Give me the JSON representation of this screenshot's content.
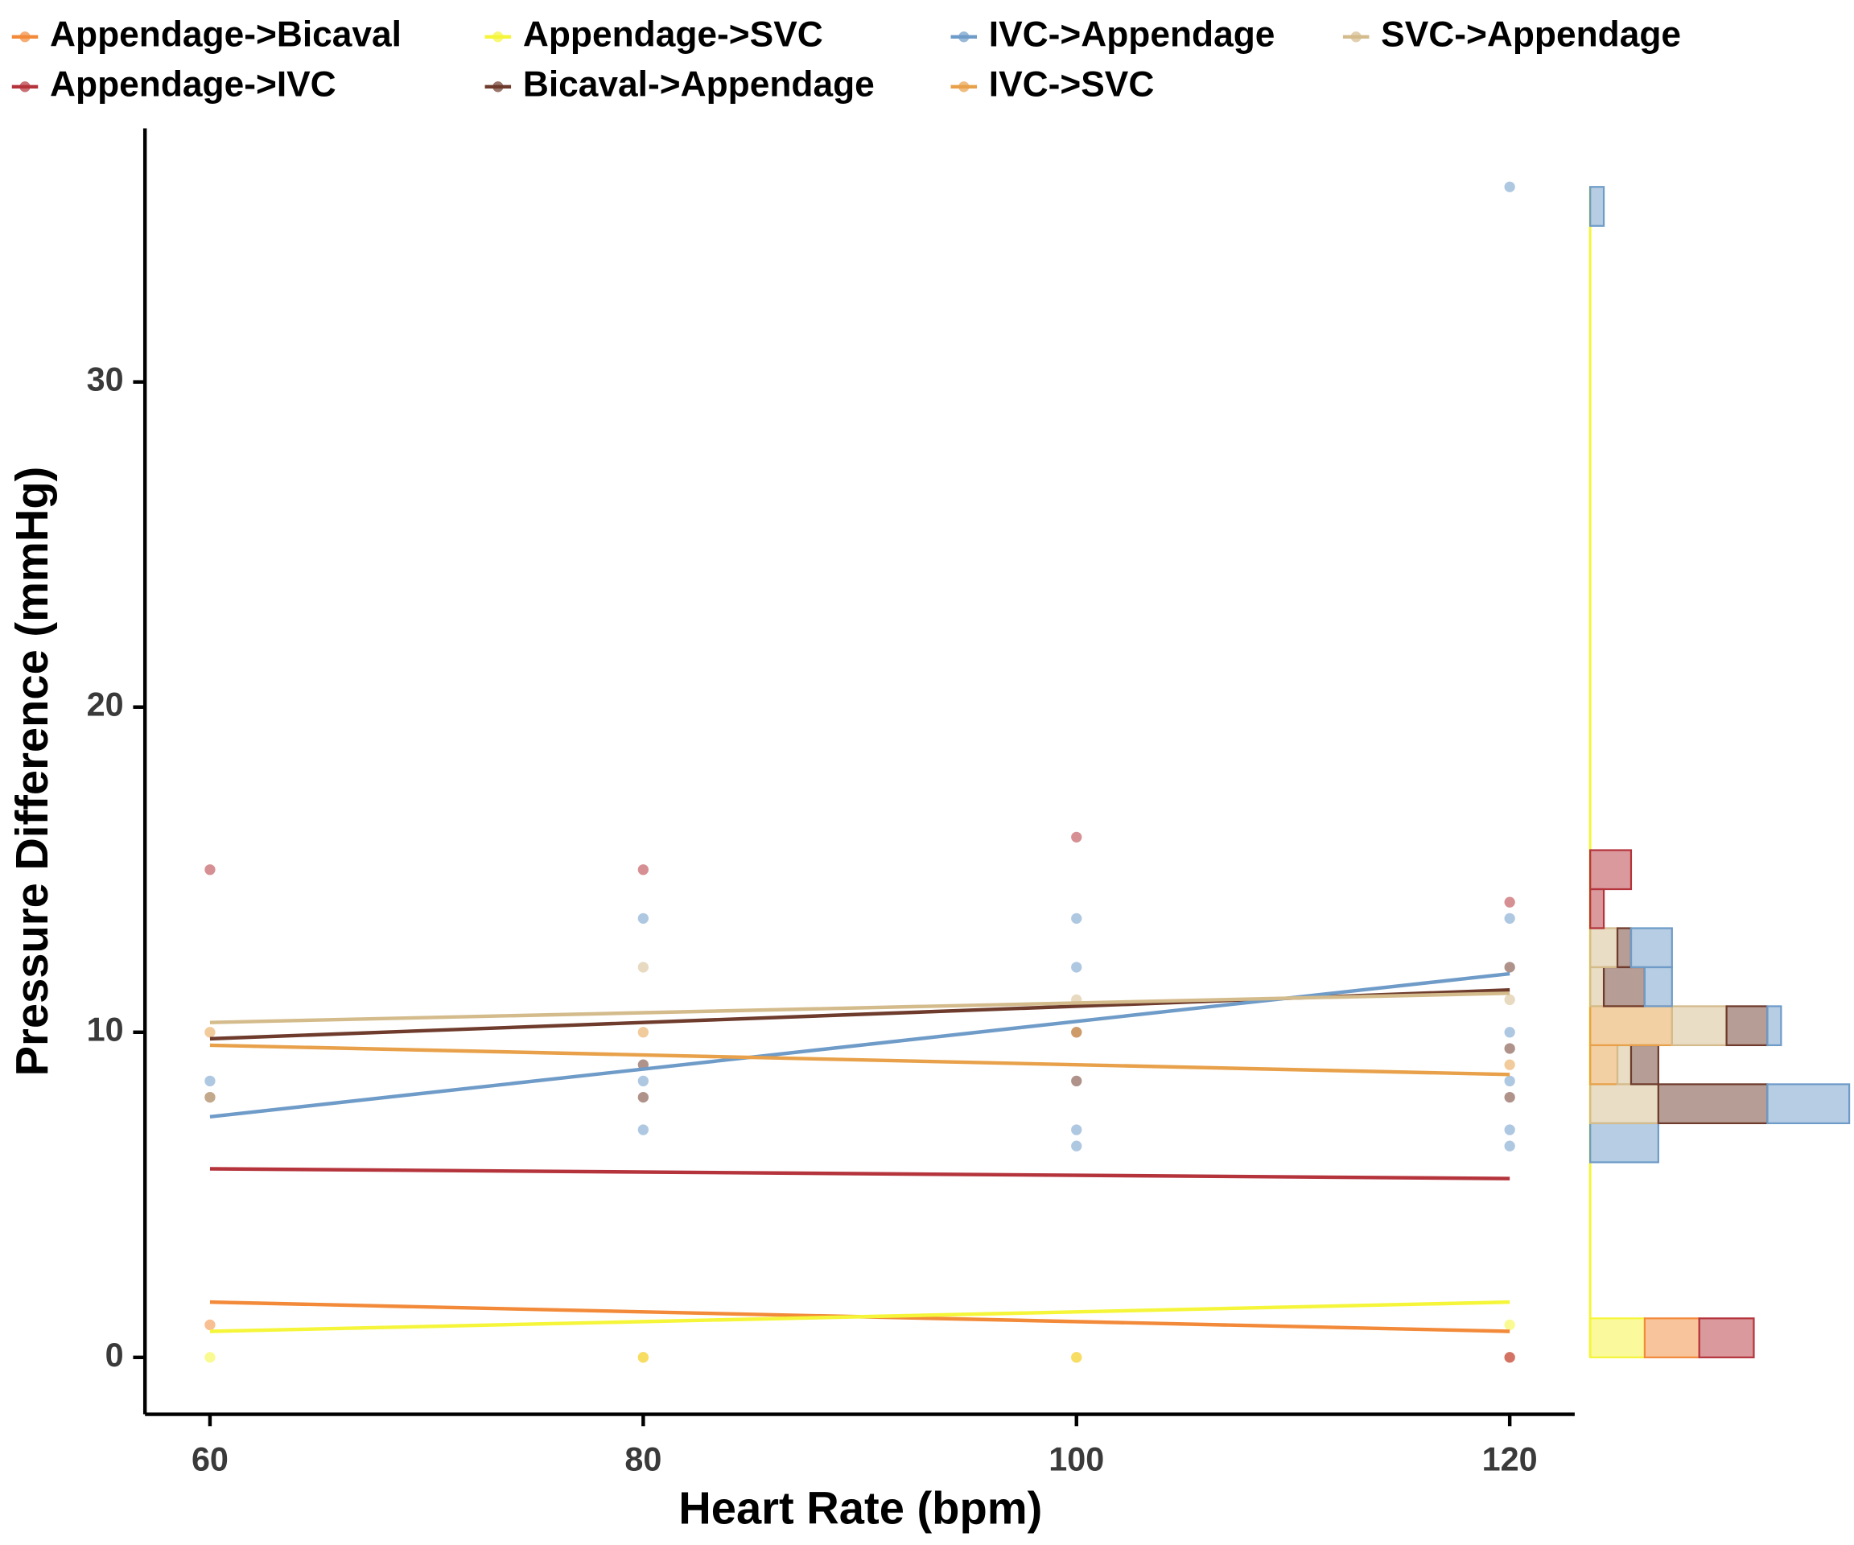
{
  "chart_data": {
    "type": "scatter",
    "x_label": "Heart Rate (bpm)",
    "y_label": "Pressure Difference (mmHg)",
    "xlim": [
      57,
      123
    ],
    "ylim": [
      -1.75,
      37.8
    ],
    "xticks": [
      60,
      80,
      100,
      120
    ],
    "yticks": [
      0,
      10,
      20,
      30
    ],
    "fit_x": [
      60,
      120
    ],
    "series": [
      {
        "name": "Appendage->Bicaval",
        "color": "#f28a3a",
        "x": [
          60,
          80,
          100,
          120
        ],
        "values": [
          1,
          0,
          0,
          0
        ],
        "fit": [
          1.7,
          0.8
        ]
      },
      {
        "name": "Appendage->IVC",
        "color": "#b5343c",
        "x": [
          60,
          80,
          100,
          120,
          120
        ],
        "values": [
          15,
          15,
          16,
          14,
          0
        ],
        "fit": [
          5.8,
          5.5
        ]
      },
      {
        "name": "Appendage->SVC",
        "color": "#f5f53a",
        "x": [
          60,
          80,
          100,
          120
        ],
        "values": [
          0,
          0,
          0,
          1
        ],
        "fit": [
          0.8,
          1.7
        ]
      },
      {
        "name": "Bicaval->Appendage",
        "color": "#6e3b2c",
        "x": [
          60,
          80,
          80,
          100,
          100,
          120,
          120,
          120
        ],
        "values": [
          8,
          8,
          9,
          8.5,
          10,
          12,
          9.5,
          8
        ],
        "fit": [
          9.8,
          11.3
        ]
      },
      {
        "name": "IVC->Appendage",
        "color": "#6e9bc8",
        "x": [
          60,
          80,
          80,
          80,
          100,
          100,
          100,
          100,
          120,
          120,
          120,
          120,
          120,
          120
        ],
        "values": [
          8.5,
          13.5,
          8.5,
          7,
          13.5,
          12,
          7,
          6.5,
          36,
          13.5,
          8.5,
          7,
          6.5,
          10
        ],
        "fit": [
          7.4,
          11.8
        ]
      },
      {
        "name": "IVC->SVC",
        "color": "#e8a14a",
        "x": [
          60,
          80,
          100,
          120
        ],
        "values": [
          10,
          10,
          10,
          9
        ],
        "fit": [
          9.6,
          8.7
        ]
      },
      {
        "name": "SVC->Appendage",
        "color": "#d4bb8c",
        "x": [
          60,
          80,
          100,
          120
        ],
        "values": [
          8,
          12,
          11,
          11
        ],
        "fit": [
          10.3,
          11.2
        ]
      }
    ],
    "histogram": {
      "bins": [
        0,
        1.2,
        2.4,
        3.6,
        4.8,
        6,
        7.2,
        8.4,
        9.6,
        10.8,
        12,
        13.2,
        14.4,
        15.6,
        16.8,
        18,
        19.2,
        20.4,
        21.6,
        22.8,
        24,
        25.2,
        26.4,
        27.6,
        28.8,
        30,
        31.2,
        32.4,
        33.6,
        34.8,
        36
      ],
      "counts": [
        [
          4,
          0,
          0,
          0,
          0,
          0,
          0,
          0,
          0,
          0,
          0,
          0,
          0,
          0,
          0,
          0,
          0,
          0,
          0,
          0,
          0,
          0,
          0,
          0,
          0,
          0,
          0,
          0,
          0,
          0
        ],
        [
          4,
          0,
          0,
          0,
          0,
          0,
          0,
          0,
          0,
          0,
          0,
          1,
          3,
          0,
          0,
          0,
          0,
          0,
          0,
          0,
          0,
          0,
          0,
          0,
          0,
          0,
          0,
          0,
          0,
          0
        ],
        [
          4,
          0,
          0,
          0,
          0,
          0,
          0,
          0,
          0,
          0,
          0,
          0,
          0,
          0,
          0,
          0,
          0,
          0,
          0,
          0,
          0,
          0,
          0,
          0,
          0,
          0,
          0,
          0,
          0,
          0
        ],
        [
          0,
          0,
          0,
          0,
          0,
          0,
          8,
          2,
          3,
          3,
          1,
          0,
          0,
          0,
          0,
          0,
          0,
          0,
          0,
          0,
          0,
          0,
          0,
          0,
          0,
          0,
          0,
          0,
          0,
          0
        ],
        [
          0,
          0,
          0,
          0,
          0,
          5,
          6,
          0,
          1,
          2,
          3,
          0,
          0,
          0,
          0,
          0,
          0,
          0,
          0,
          0,
          0,
          0,
          0,
          0,
          0,
          0,
          0,
          0,
          0,
          1
        ],
        [
          0,
          0,
          0,
          0,
          0,
          0,
          0,
          2,
          6,
          0,
          0,
          0,
          0,
          0,
          0,
          0,
          0,
          0,
          0,
          0,
          0,
          0,
          0,
          0,
          0,
          0,
          0,
          0,
          0,
          0
        ],
        [
          0,
          0,
          0,
          0,
          0,
          0,
          5,
          1,
          4,
          1,
          2,
          0,
          0,
          0,
          0,
          0,
          0,
          0,
          0,
          0,
          0,
          0,
          0,
          0,
          0,
          0,
          0,
          0,
          0,
          0
        ]
      ]
    }
  }
}
